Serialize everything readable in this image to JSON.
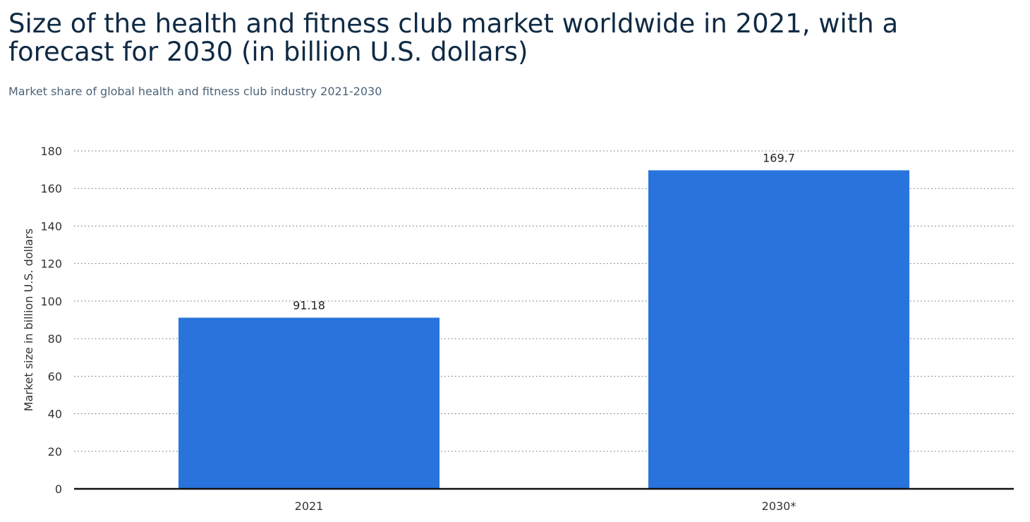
{
  "chart_data": {
    "type": "bar",
    "title": "Size of the health and fitness club market worldwide in 2021, with a forecast for 2030 (in billion U.S. dollars)",
    "subtitle": "Market share of global health and fitness club industry 2021-2030",
    "categories": [
      "2021",
      "2030*"
    ],
    "values": [
      91.18,
      169.7
    ],
    "value_labels": [
      "91.18",
      "169.7"
    ],
    "xlabel": "",
    "ylabel": "Market size in billion U.S. dollars",
    "ylim": [
      0,
      180
    ],
    "yticks": [
      0,
      20,
      40,
      60,
      80,
      100,
      120,
      140,
      160,
      180
    ],
    "grid": true,
    "bar_color": "#2874dc"
  }
}
